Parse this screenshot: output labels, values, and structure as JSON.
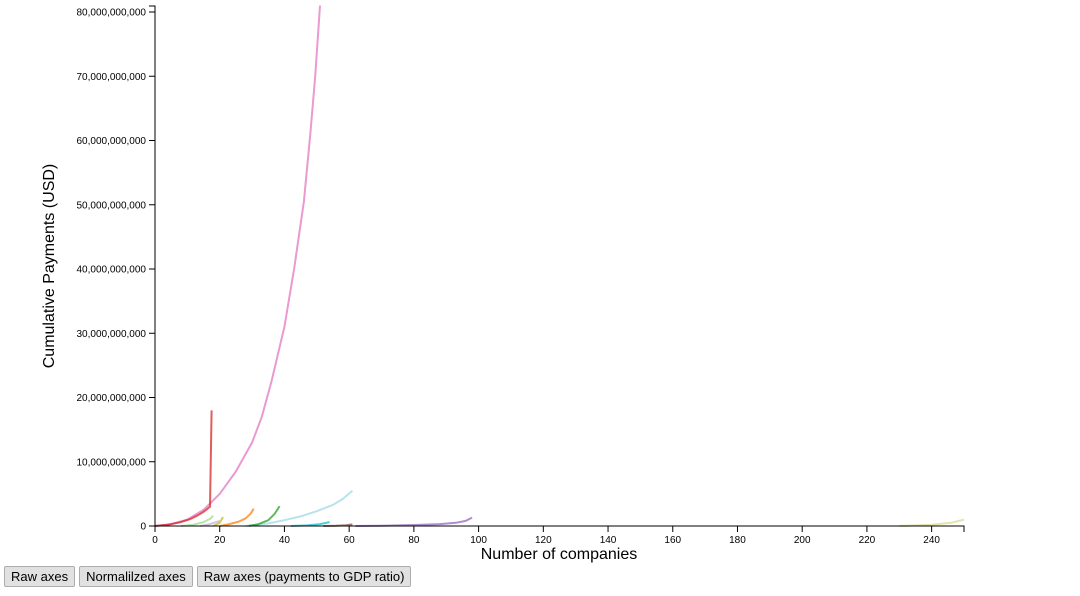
{
  "chart_data": {
    "type": "line",
    "title": "",
    "xlabel": "Number of companies",
    "ylabel": "Cumulative Payments (USD)",
    "xlim": [
      0,
      250
    ],
    "ylim": [
      0,
      80000000000
    ],
    "x_ticks": [
      "0",
      "20",
      "40",
      "60",
      "80",
      "100",
      "120",
      "140",
      "160",
      "180",
      "200",
      "220",
      "240"
    ],
    "y_ticks": [
      "0",
      "10,000,000,000",
      "20,000,000,000",
      "30,000,000,000",
      "40,000,000,000",
      "50,000,000,000",
      "60,000,000,000",
      "70,000,000,000",
      "80,000,000,000"
    ],
    "grid": false,
    "legend": "none",
    "series": [
      {
        "color": "#e377c2",
        "x": [
          0,
          5,
          10,
          15,
          20,
          25,
          30,
          33,
          36,
          40,
          43,
          46,
          48,
          49.5,
          51
        ],
        "y": [
          0,
          300000000,
          1000000000,
          2500000000,
          5000000000,
          8500000000,
          13000000000,
          17000000000,
          22500000000,
          31000000000,
          40000000000,
          50500000000,
          61000000000,
          70000000000,
          81000000000
        ]
      },
      {
        "color": "#d62728",
        "x": [
          0,
          4,
          8,
          11,
          13,
          15,
          16,
          17,
          17.5
        ],
        "y": [
          0,
          200000000,
          600000000,
          1100000000,
          1600000000,
          2200000000,
          2600000000,
          3000000000,
          18000000000
        ]
      },
      {
        "color": "#9edae5",
        "x": [
          28,
          35,
          40,
          45,
          50,
          55,
          58,
          61
        ],
        "y": [
          0,
          400000000,
          900000000,
          1500000000,
          2300000000,
          3300000000,
          4200000000,
          5500000000
        ]
      },
      {
        "color": "#9467bd",
        "x": [
          62,
          70,
          80,
          88,
          93,
          96,
          98
        ],
        "y": [
          0,
          50000000,
          150000000,
          300000000,
          500000000,
          800000000,
          1300000000
        ]
      },
      {
        "color": "#ff7f0e",
        "x": [
          20,
          23,
          26,
          28,
          29.5,
          30.5
        ],
        "y": [
          0,
          300000000,
          700000000,
          1200000000,
          1900000000,
          2700000000
        ]
      },
      {
        "color": "#2ca02c",
        "x": [
          29,
          32,
          35,
          37,
          38.5
        ],
        "y": [
          0,
          300000000,
          900000000,
          1900000000,
          3100000000
        ]
      },
      {
        "color": "#98df8a",
        "x": [
          8,
          12,
          15,
          17,
          18
        ],
        "y": [
          0,
          200000000,
          600000000,
          1100000000,
          1600000000
        ]
      },
      {
        "color": "#bcbd22",
        "x": [
          18,
          20,
          21
        ],
        "y": [
          0,
          500000000,
          1400000000
        ]
      },
      {
        "color": "#17becf",
        "x": [
          42,
          47,
          51,
          54
        ],
        "y": [
          0,
          100000000,
          300000000,
          600000000
        ]
      },
      {
        "color": "#8c564b",
        "x": [
          52,
          56,
          59,
          61
        ],
        "y": [
          0,
          50000000,
          120000000,
          250000000
        ]
      },
      {
        "color": "#dbdb8d",
        "x": [
          230,
          240,
          246,
          250
        ],
        "y": [
          0,
          200000000,
          500000000,
          1000000000
        ]
      },
      {
        "color": "#c5b0d5",
        "x": [
          14,
          17,
          20
        ],
        "y": [
          0,
          300000000,
          800000000
        ]
      }
    ]
  },
  "controls": {
    "raw_axes": "Raw axes",
    "normalized_axes": "Normalilzed axes",
    "gdp_ratio": "Raw axes (payments to GDP ratio)"
  }
}
